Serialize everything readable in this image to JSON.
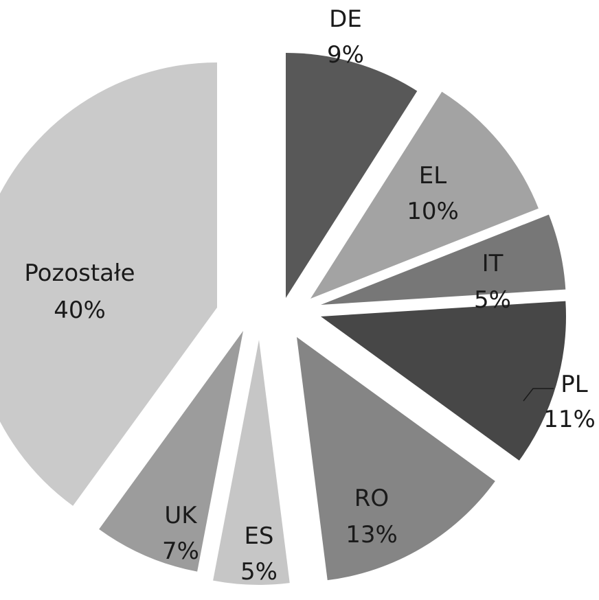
{
  "chart_data": {
    "type": "pie",
    "exploded": true,
    "labels": [
      "DE",
      "EL",
      "IT",
      "PL",
      "RO",
      "ES",
      "UK",
      "Pozostałe"
    ],
    "values": [
      9,
      10,
      5,
      11,
      13,
      5,
      7,
      40
    ],
    "value_labels": [
      "9%",
      "10%",
      "5%",
      "11%",
      "13%",
      "5%",
      "7%",
      "40%"
    ],
    "colors": [
      "#585858",
      "#a3a3a3",
      "#777777",
      "#474747",
      "#858585",
      "#c6c6c6",
      "#9c9c9c",
      "#cacaca"
    ]
  }
}
